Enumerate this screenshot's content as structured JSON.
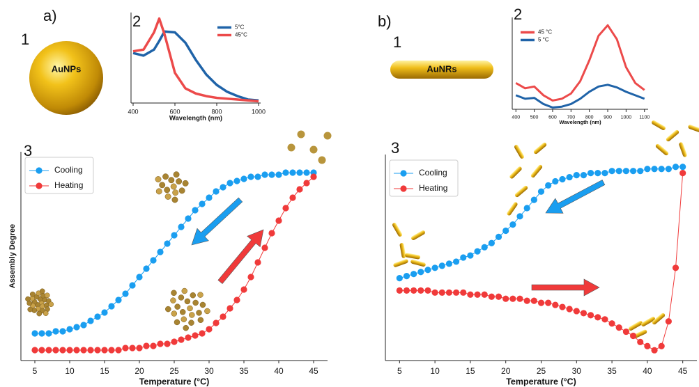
{
  "panels": [
    {
      "letter": "a)",
      "sublabels": [
        "1",
        "2",
        "3"
      ],
      "particle": "AuNPs"
    },
    {
      "letter": "b)",
      "sublabels": [
        "1",
        "2",
        "3"
      ],
      "particle": "AuNRs"
    }
  ],
  "chart_data": [
    {
      "type": "line",
      "xlabel": "Wavelength (nm)",
      "xlim": [
        390,
        1010
      ],
      "xticks": [
        400,
        600,
        800,
        1000
      ],
      "ylim": [
        0,
        1.05
      ],
      "legend": "upper right",
      "markers": false,
      "x": [
        400,
        450,
        500,
        525,
        550,
        600,
        650,
        700,
        750,
        800,
        850,
        900,
        950,
        1000
      ],
      "series": [
        {
          "name": "5°C",
          "color": "#1f63a8",
          "values": [
            0.58,
            0.55,
            0.62,
            0.72,
            0.83,
            0.82,
            0.7,
            0.5,
            0.33,
            0.21,
            0.13,
            0.08,
            0.04,
            0.03
          ]
        },
        {
          "name": "45°C",
          "color": "#ec4a4a",
          "values": [
            0.6,
            0.62,
            0.82,
            0.98,
            0.8,
            0.35,
            0.17,
            0.11,
            0.08,
            0.06,
            0.05,
            0.04,
            0.03,
            0.02
          ]
        }
      ]
    },
    {
      "type": "line",
      "xlabel": "Temperature (°C)",
      "ylabel": "Assembly Degree",
      "xlim": [
        3,
        47
      ],
      "xticks": [
        5,
        10,
        15,
        20,
        25,
        30,
        35,
        40,
        45
      ],
      "ylim": [
        0,
        1
      ],
      "legend": "upper left",
      "markers": true,
      "x": [
        5,
        6,
        7,
        8,
        9,
        10,
        11,
        12,
        13,
        14,
        15,
        16,
        17,
        18,
        19,
        20,
        21,
        22,
        23,
        24,
        25,
        26,
        27,
        28,
        29,
        30,
        31,
        32,
        33,
        34,
        35,
        36,
        37,
        38,
        39,
        40,
        41,
        42,
        43,
        44,
        45
      ],
      "series": [
        {
          "name": "Cooling",
          "color": "#1a9ef0",
          "values": [
            0.13,
            0.13,
            0.13,
            0.14,
            0.14,
            0.15,
            0.16,
            0.17,
            0.19,
            0.21,
            0.23,
            0.26,
            0.29,
            0.32,
            0.36,
            0.4,
            0.44,
            0.48,
            0.52,
            0.56,
            0.6,
            0.64,
            0.68,
            0.72,
            0.75,
            0.78,
            0.81,
            0.83,
            0.85,
            0.86,
            0.87,
            0.88,
            0.88,
            0.89,
            0.89,
            0.89,
            0.9,
            0.9,
            0.9,
            0.9,
            0.9
          ]
        },
        {
          "name": "Heating",
          "color": "#f03a3a",
          "values": [
            0.05,
            0.05,
            0.05,
            0.05,
            0.05,
            0.05,
            0.05,
            0.05,
            0.05,
            0.05,
            0.05,
            0.05,
            0.05,
            0.06,
            0.06,
            0.06,
            0.07,
            0.07,
            0.08,
            0.08,
            0.09,
            0.1,
            0.11,
            0.12,
            0.13,
            0.15,
            0.18,
            0.21,
            0.25,
            0.29,
            0.34,
            0.4,
            0.47,
            0.54,
            0.61,
            0.67,
            0.73,
            0.78,
            0.82,
            0.85,
            0.88
          ]
        }
      ]
    },
    {
      "type": "line",
      "xlabel": "Wavelength (nm)",
      "xlim": [
        380,
        1120
      ],
      "xticks": [
        400,
        500,
        600,
        700,
        800,
        900,
        1000,
        1100
      ],
      "ylim": [
        0,
        1.05
      ],
      "legend": "upper left",
      "markers": false,
      "x": [
        400,
        450,
        500,
        550,
        600,
        650,
        700,
        750,
        800,
        850,
        900,
        950,
        1000,
        1050,
        1100
      ],
      "series": [
        {
          "name": "45 °C",
          "color": "#ec4a4a",
          "values": [
            0.3,
            0.24,
            0.26,
            0.16,
            0.1,
            0.12,
            0.18,
            0.32,
            0.56,
            0.84,
            0.96,
            0.8,
            0.48,
            0.3,
            0.22
          ]
        },
        {
          "name": "5 °C",
          "color": "#1f63a8",
          "values": [
            0.16,
            0.12,
            0.13,
            0.06,
            0.02,
            0.03,
            0.06,
            0.12,
            0.2,
            0.26,
            0.28,
            0.25,
            0.2,
            0.16,
            0.12
          ]
        }
      ]
    },
    {
      "type": "line",
      "xlabel": "Temperature (°C)",
      "xlim": [
        3,
        47
      ],
      "xticks": [
        5,
        10,
        15,
        20,
        25,
        30,
        35,
        40,
        45
      ],
      "ylim": [
        0,
        1
      ],
      "legend": "upper left",
      "markers": true,
      "x": [
        5,
        6,
        7,
        8,
        9,
        10,
        11,
        12,
        13,
        14,
        15,
        16,
        17,
        18,
        19,
        20,
        21,
        22,
        23,
        24,
        25,
        26,
        27,
        28,
        29,
        30,
        31,
        32,
        33,
        34,
        35,
        36,
        37,
        38,
        39,
        40,
        41,
        42,
        43,
        44,
        45
      ],
      "series": [
        {
          "name": "Cooling",
          "color": "#1a9ef0",
          "values": [
            0.4,
            0.41,
            0.42,
            0.43,
            0.44,
            0.45,
            0.46,
            0.47,
            0.48,
            0.5,
            0.51,
            0.53,
            0.55,
            0.57,
            0.6,
            0.63,
            0.66,
            0.7,
            0.74,
            0.78,
            0.82,
            0.85,
            0.87,
            0.88,
            0.89,
            0.9,
            0.9,
            0.91,
            0.91,
            0.91,
            0.92,
            0.92,
            0.92,
            0.92,
            0.92,
            0.93,
            0.93,
            0.93,
            0.93,
            0.94,
            0.94
          ]
        },
        {
          "name": "Heating",
          "color": "#f03a3a",
          "values": [
            0.34,
            0.34,
            0.34,
            0.34,
            0.34,
            0.33,
            0.33,
            0.33,
            0.33,
            0.33,
            0.32,
            0.32,
            0.32,
            0.31,
            0.31,
            0.3,
            0.3,
            0.3,
            0.29,
            0.29,
            0.28,
            0.28,
            0.27,
            0.26,
            0.25,
            0.24,
            0.23,
            0.22,
            0.21,
            0.2,
            0.18,
            0.16,
            0.14,
            0.12,
            0.09,
            0.07,
            0.05,
            0.07,
            0.19,
            0.45,
            0.91
          ]
        }
      ]
    }
  ]
}
